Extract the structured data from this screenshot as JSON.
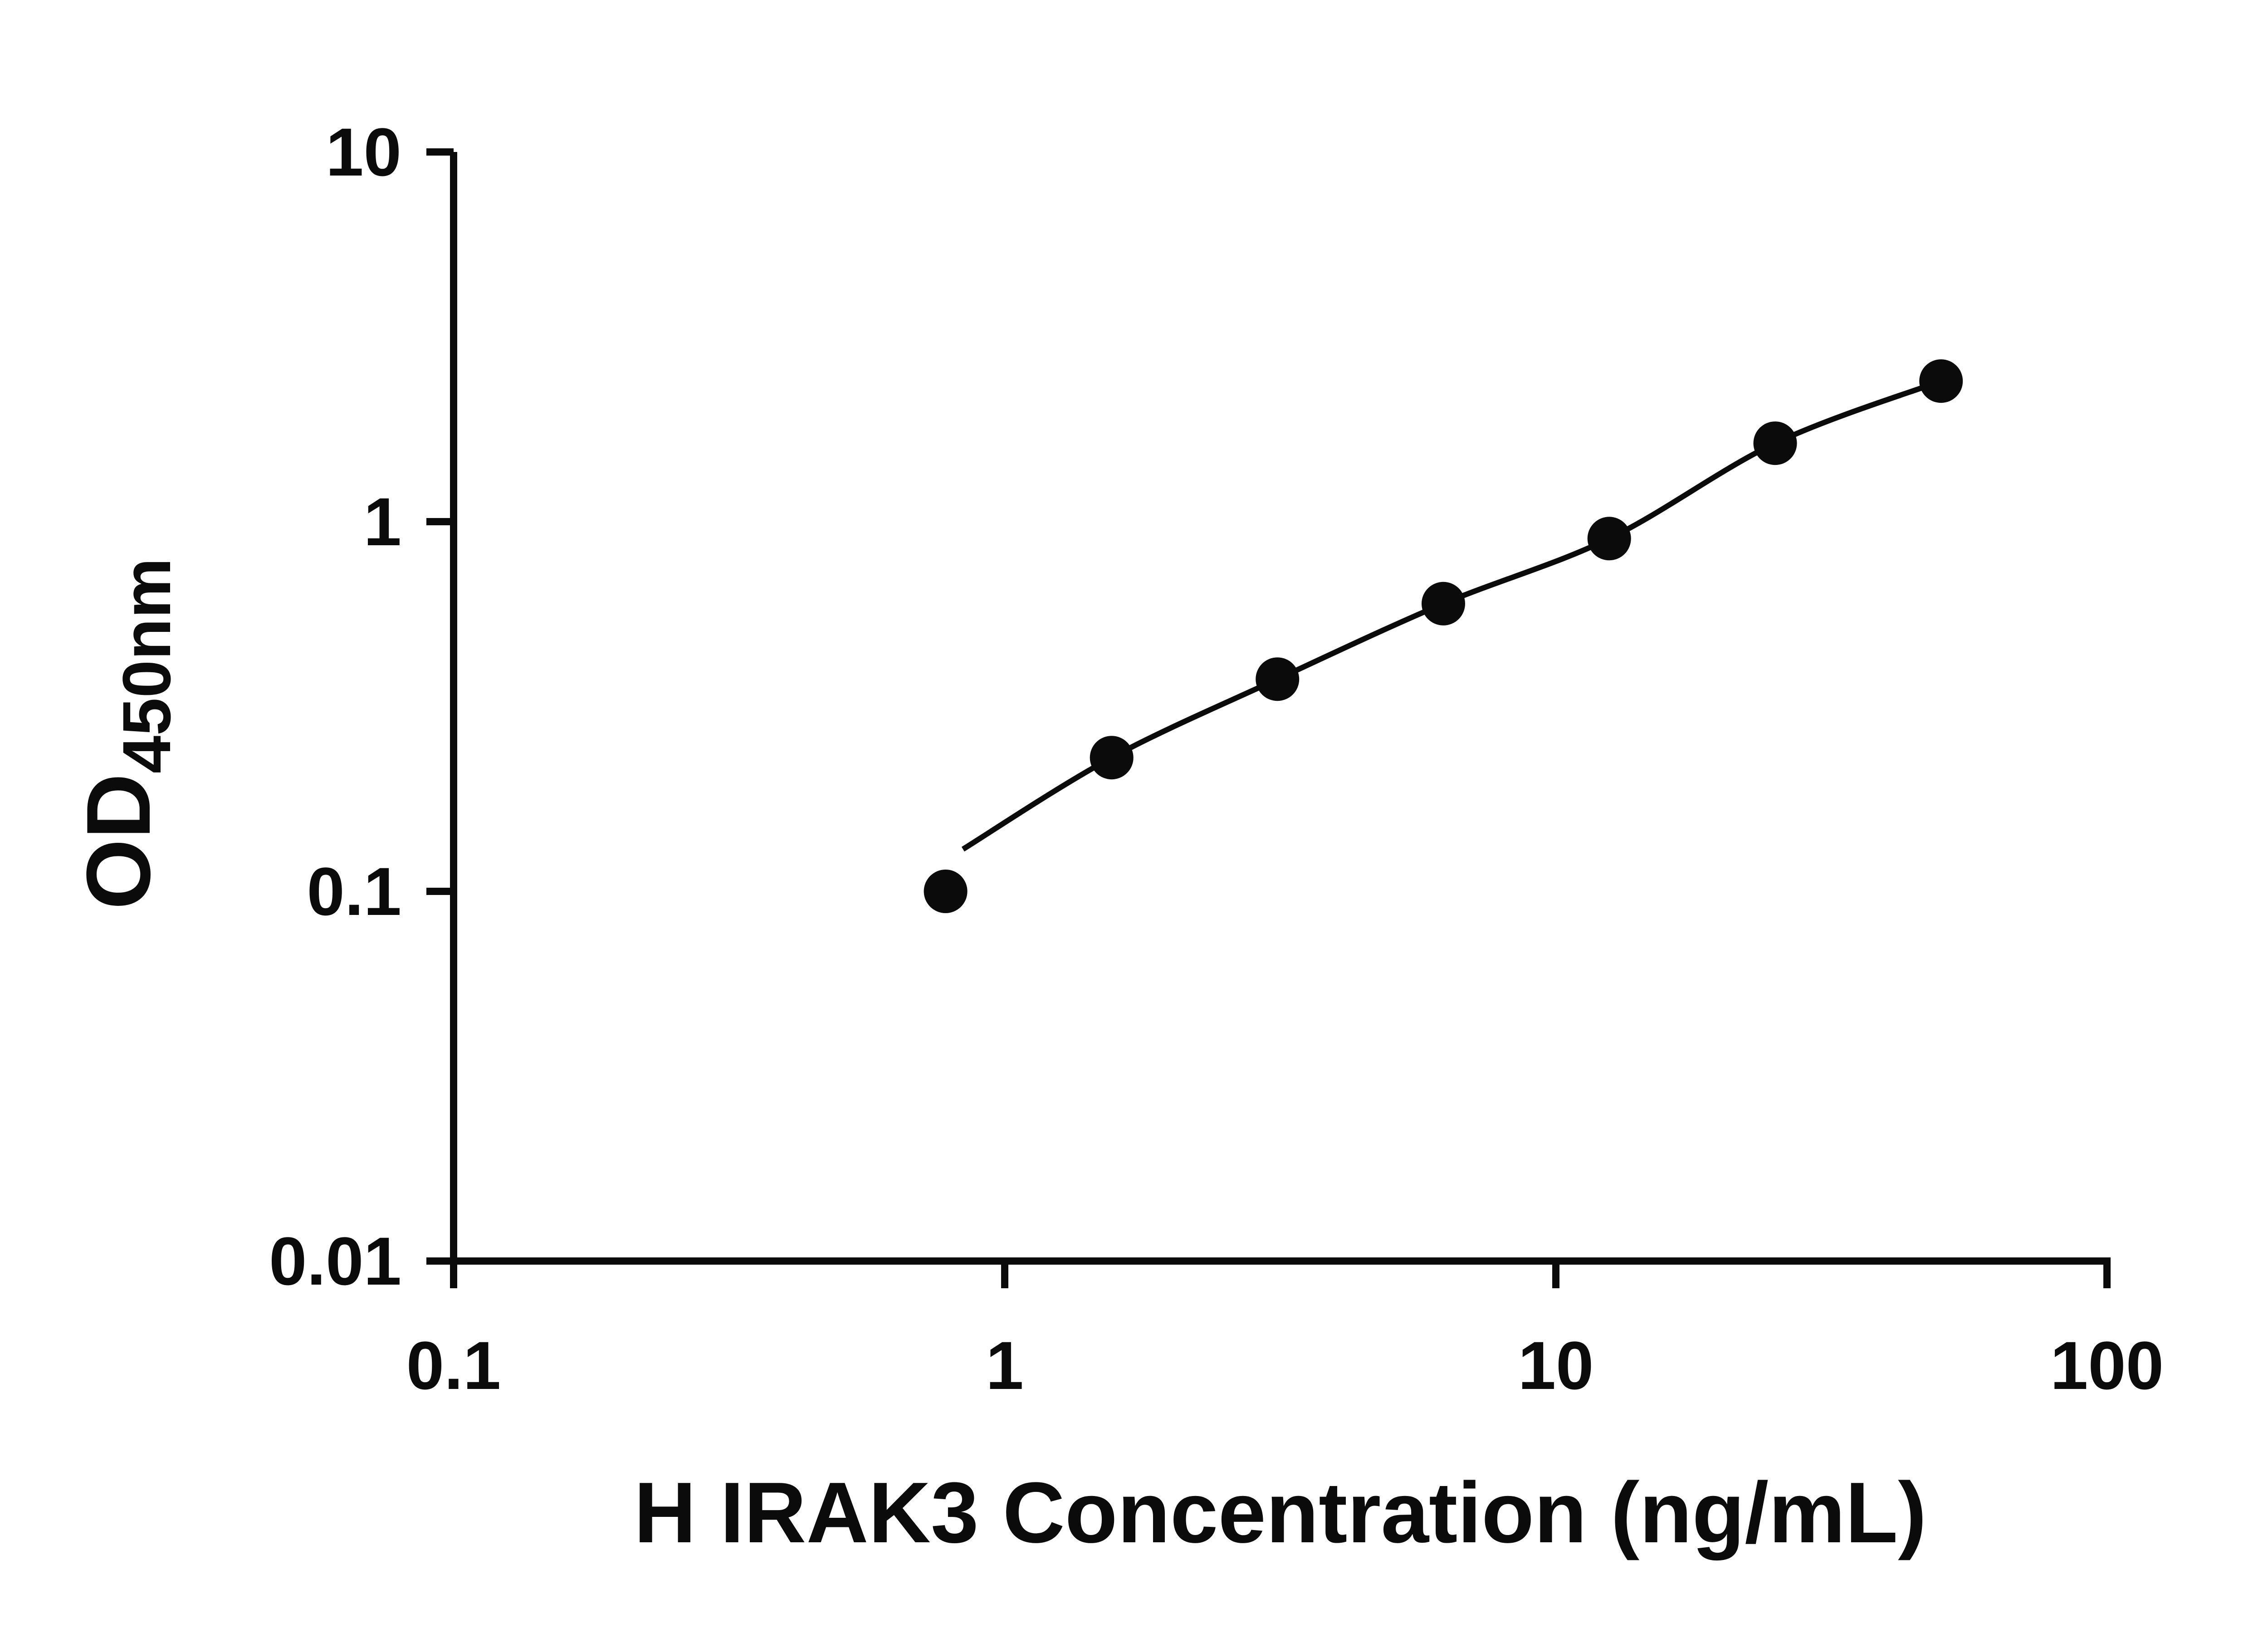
{
  "figure": {
    "background": "#ffffff"
  },
  "chart_data": {
    "type": "scatter",
    "title": "",
    "xlabel": "H IRAK3 Concentration (ng/mL)",
    "ylabel_main": "OD",
    "ylabel_sub": "450nm",
    "x_scale": "log",
    "y_scale": "log",
    "xlim": [
      0.1,
      100
    ],
    "ylim": [
      0.01,
      10
    ],
    "x_ticks": [
      0.1,
      1,
      10,
      100
    ],
    "x_tick_labels": [
      "0.1",
      "1",
      "10",
      "100"
    ],
    "y_ticks": [
      0.01,
      0.1,
      1,
      10
    ],
    "y_tick_labels": [
      "0.01",
      "0.1",
      "1",
      "10"
    ],
    "grid": false,
    "legend": "none",
    "axis_color": "#0b0b0b",
    "marker_color": "#0b0b0b",
    "line_color": "#0b0b0b",
    "series": [
      {
        "name": "standard-points",
        "type": "scatter",
        "x": [
          0.781,
          1.563,
          3.125,
          6.25,
          12.5,
          25,
          50
        ],
        "y": [
          0.1,
          0.23,
          0.375,
          0.6,
          0.9,
          1.63,
          2.4
        ]
      },
      {
        "name": "fit-line",
        "type": "line",
        "x": [
          0.84,
          1.563,
          3.125,
          6.25,
          12.5,
          25,
          50
        ],
        "y": [
          0.13,
          0.23,
          0.375,
          0.6,
          0.9,
          1.63,
          2.4
        ]
      }
    ]
  }
}
